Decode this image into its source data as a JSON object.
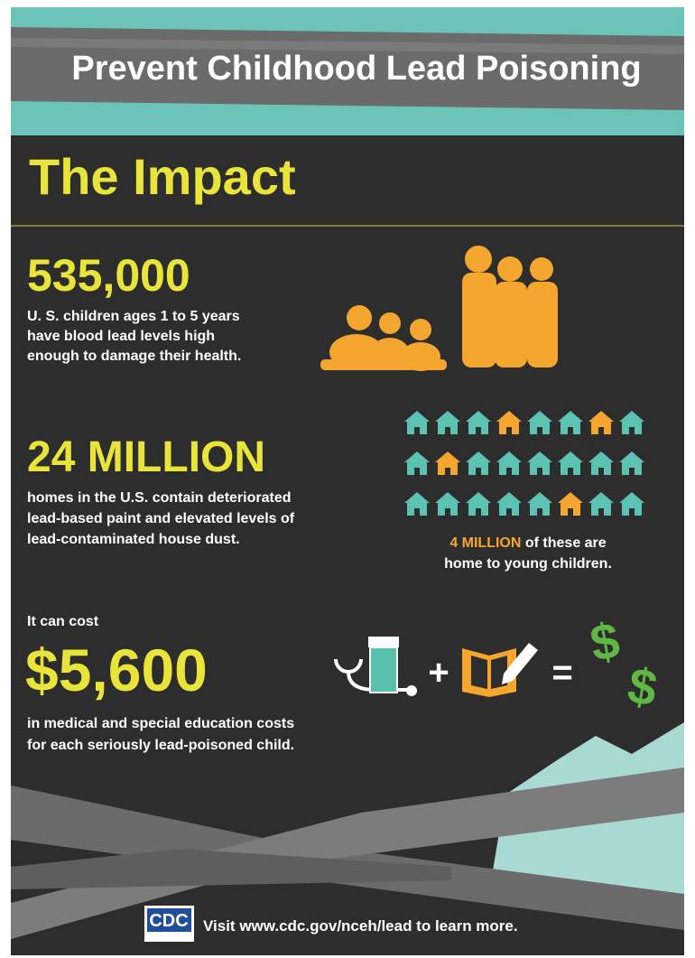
{
  "header": {
    "title": "Prevent Childhood Lead Poisoning"
  },
  "section": {
    "heading": "The Impact"
  },
  "stats": [
    {
      "number": "535,000",
      "lines": [
        "U. S. children ages 1 to 5 years",
        "have blood lead levels high",
        "enough to damage their health."
      ]
    },
    {
      "number": "24 MILLION",
      "lines": [
        "homes in the U.S. contain deteriorated",
        "lead-based paint and elevated levels of",
        "lead-contaminated house dust."
      ],
      "note": {
        "highlight": "4 MILLION",
        "rest": " of these are",
        "line2": "home to young children."
      }
    },
    {
      "intro": "It can cost",
      "number": "$5,600",
      "lines": [
        "in medical and special education costs",
        "for each seriously lead-poisoned child."
      ],
      "equation": {
        "plus": "+",
        "equals": "=",
        "dollars": [
          "$",
          "$"
        ]
      }
    }
  ],
  "footer": {
    "logo": "CDC",
    "text": "Visit www.cdc.gov/nceh/lead to learn more."
  }
}
